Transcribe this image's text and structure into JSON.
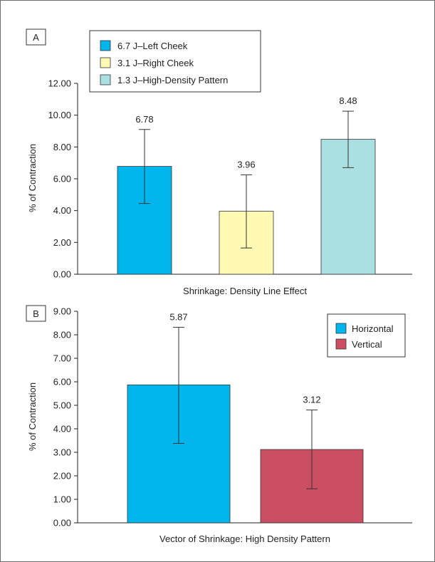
{
  "chart_data": [
    {
      "type": "bar",
      "panel_label": "A",
      "categories": [
        "6.7 J–Left Cheek",
        "3.1 J–Right Cheek",
        "1.3 J–High-Density Pattern"
      ],
      "values": [
        6.78,
        3.96,
        8.48
      ],
      "value_labels": [
        "6.78",
        "3.96",
        "8.48"
      ],
      "error_low": [
        4.45,
        1.65,
        6.7
      ],
      "error_high": [
        9.1,
        6.25,
        10.25
      ],
      "colors": [
        "#00b6ed",
        "#fff9b4",
        "#abe0e3"
      ],
      "xlabel": "Shrinkage: Density Line Effect",
      "ylabel": "% of Contraction",
      "ylim": [
        0,
        12
      ],
      "yticks": [
        "0.00",
        "2.00",
        "4.00",
        "6.00",
        "8.00",
        "10.00",
        "12.00"
      ],
      "legend_labels": [
        "6.7 J–Left Cheek",
        "3.1 J–Right Cheek",
        "1.3 J–High-Density Pattern"
      ],
      "legend_position": "top-left",
      "grid": false
    },
    {
      "type": "bar",
      "panel_label": "B",
      "categories": [
        "Horizontal",
        "Vertical"
      ],
      "values": [
        5.87,
        3.12
      ],
      "value_labels": [
        "5.87",
        "3.12"
      ],
      "error_low": [
        3.38,
        1.45
      ],
      "error_high": [
        8.32,
        4.8
      ],
      "colors": [
        "#00b6ed",
        "#cb4f63"
      ],
      "xlabel": "Vector of Shrinkage: High Density Pattern",
      "ylabel": "% of Contraction",
      "ylim": [
        0,
        9
      ],
      "yticks": [
        "0.00",
        "1.00",
        "2.00",
        "3.00",
        "4.00",
        "5.00",
        "6.00",
        "7.00",
        "8.00",
        "9.00"
      ],
      "legend_labels": [
        "Horizontal",
        "Vertical"
      ],
      "legend_position": "top-right",
      "grid": false
    }
  ]
}
